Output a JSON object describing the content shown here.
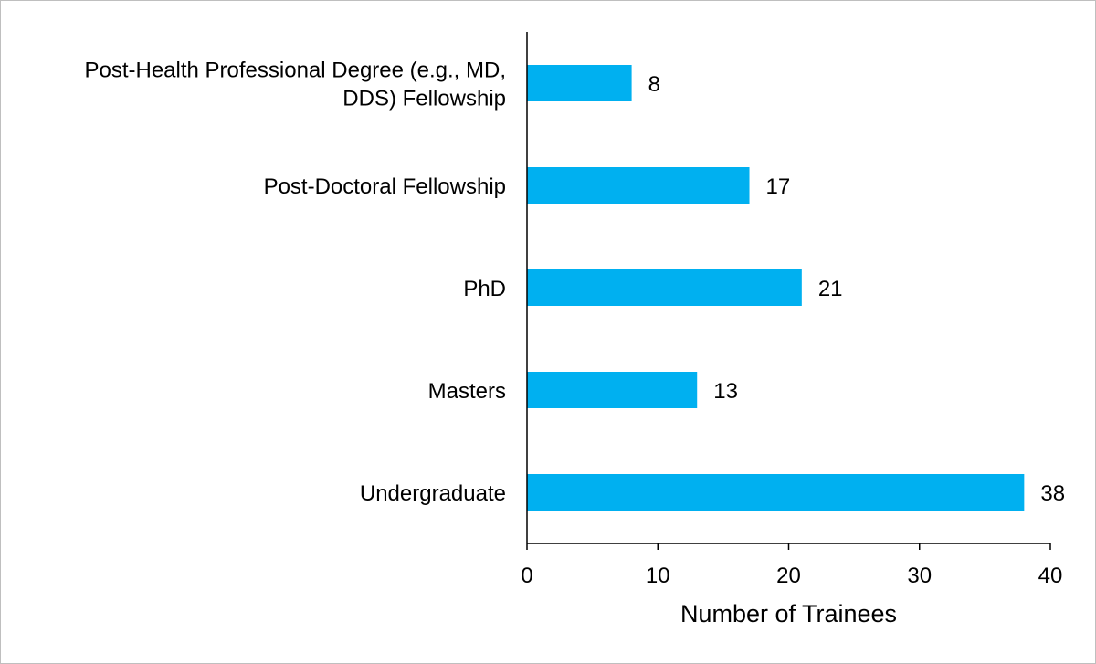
{
  "chart_data": {
    "type": "bar",
    "orientation": "horizontal",
    "categories": [
      "Post-Health Professional Degree (e.g., MD, DDS) Fellowship",
      "Post-Doctoral Fellowship",
      "PhD",
      "Masters",
      "Undergraduate"
    ],
    "category_label_lines": [
      [
        "Post-Health Professional Degree (e.g., MD,",
        "DDS) Fellowship"
      ],
      [
        "Post-Doctoral Fellowship"
      ],
      [
        "PhD"
      ],
      [
        "Masters"
      ],
      [
        "Undergraduate"
      ]
    ],
    "values": [
      8,
      17,
      21,
      13,
      38
    ],
    "xlabel": "Number of Trainees",
    "xlim": [
      0,
      40
    ],
    "xticks": [
      0,
      10,
      20,
      30,
      40
    ],
    "bar_color": "#00b0f0",
    "data_labels": true,
    "grid": false,
    "legend": "none"
  }
}
